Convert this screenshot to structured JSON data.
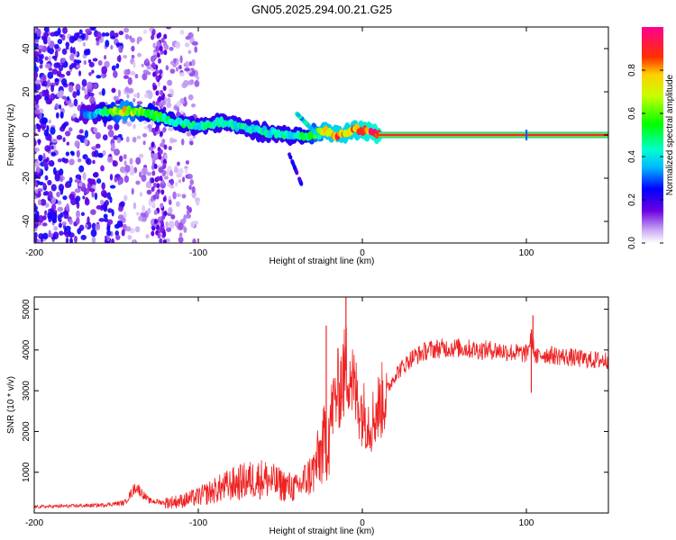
{
  "figure": {
    "title": "GN05.2025.294.00.21.G25"
  },
  "chart_data": [
    {
      "type": "heatmap",
      "title": "GN05.2025.294.00.21.G25",
      "xlabel": "Height of straight line (km)",
      "ylabel": "Frequency (Hz)",
      "xlim": [
        -200,
        150
      ],
      "ylim": [
        -50,
        50
      ],
      "x_ticks": [
        -200,
        -100,
        0,
        100
      ],
      "x_tick_labels": [
        "-200",
        "-100",
        "0",
        "100"
      ],
      "y_ticks": [
        -40,
        -20,
        0,
        20,
        40
      ],
      "y_tick_labels": [
        "-40",
        "-20",
        "0",
        "20",
        "40"
      ],
      "colorbar": {
        "label": "Normalized spectral amplitude",
        "range": [
          0,
          1
        ],
        "ticks": [
          0,
          0.2,
          0.4,
          0.6,
          0.8
        ],
        "tick_labels": [
          "0.0",
          "0.2",
          "0.4",
          "0.6",
          "0.8"
        ]
      },
      "dominant_ridge": {
        "description_points_height_km": [
          -165,
          -145,
          -130,
          -115,
          -100,
          -85,
          -70,
          -55,
          -45,
          -35,
          -25,
          -15,
          -5,
          0,
          10,
          50,
          100,
          150
        ],
        "frequency_hz": [
          10,
          11,
          10,
          6,
          4,
          6,
          3,
          1,
          0,
          -1,
          2,
          0,
          3,
          2,
          0,
          0,
          0,
          0
        ],
        "amplitude": [
          0.35,
          0.75,
          0.55,
          0.5,
          0.45,
          0.45,
          0.45,
          0.45,
          0.45,
          0.5,
          0.8,
          0.85,
          0.85,
          0.9,
          0.95,
          0.95,
          0.95,
          0.95
        ]
      }
    },
    {
      "type": "line",
      "xlabel": "Height of straight line (km)",
      "ylabel": "SNR (10 * v/v)",
      "xlim": [
        -200,
        150
      ],
      "ylim": [
        0,
        5300
      ],
      "x_ticks": [
        -200,
        -100,
        0,
        100
      ],
      "x_tick_labels": [
        "-200",
        "-100",
        "0",
        "100"
      ],
      "y_ticks": [
        1000,
        2000,
        3000,
        4000,
        5000
      ],
      "y_tick_labels": [
        "1000",
        "2000",
        "3000",
        "4000",
        "5000"
      ],
      "series": [
        {
          "name": "SNR",
          "color": "#ee2222",
          "x": [
            -200,
            -180,
            -160,
            -145,
            -138,
            -130,
            -120,
            -110,
            -100,
            -90,
            -80,
            -70,
            -60,
            -50,
            -40,
            -30,
            -22,
            -18,
            -15,
            -12,
            -10,
            -8,
            -5,
            0,
            5,
            10,
            20,
            30,
            40,
            50,
            60,
            70,
            80,
            90,
            100,
            103,
            106,
            110,
            120,
            130,
            140,
            150
          ],
          "y": [
            150,
            170,
            190,
            250,
            650,
            300,
            250,
            300,
            400,
            550,
            700,
            800,
            850,
            700,
            600,
            1000,
            1800,
            2600,
            3000,
            3300,
            3500,
            3700,
            3000,
            2500,
            2200,
            2600,
            3400,
            3800,
            4000,
            4050,
            4050,
            4000,
            4000,
            3950,
            3900,
            4300,
            3800,
            3900,
            3850,
            3800,
            3750,
            3750
          ],
          "spikes": [
            {
              "x": -22,
              "y": 4600
            },
            {
              "x": -10,
              "y": 5300
            },
            {
              "x": 104,
              "y": 4850
            },
            {
              "x": 103,
              "y": 2950
            }
          ]
        }
      ]
    }
  ]
}
